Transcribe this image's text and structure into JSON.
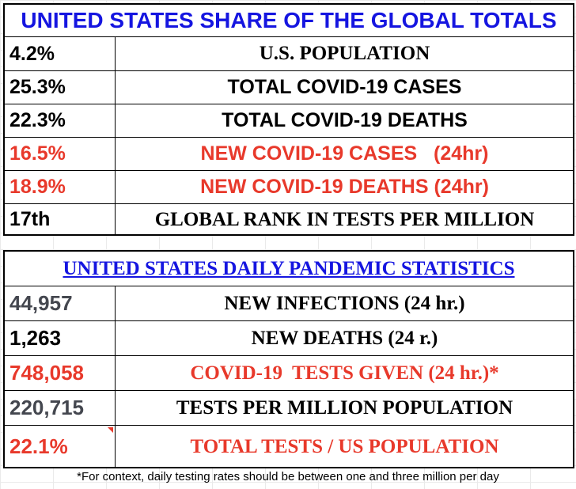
{
  "share_table": {
    "title": "UNITED STATES SHARE OF THE GLOBAL TOTALS",
    "rows": [
      {
        "value": "4.2%",
        "label": "U.S. POPULATION"
      },
      {
        "value": "25.3%",
        "label": "TOTAL COVID-19 CASES"
      },
      {
        "value": "22.3%",
        "label": "TOTAL COVID-19 DEATHS"
      },
      {
        "value": "16.5%",
        "label": "NEW COVID-19 CASES   (24hr)"
      },
      {
        "value": "18.9%",
        "label": "NEW COVID-19 DEATHS (24hr)"
      },
      {
        "value": "17th",
        "label": "GLOBAL RANK IN TESTS PER MILLION"
      }
    ]
  },
  "daily_table": {
    "title": "UNITED STATES DAILY PANDEMIC STATISTICS",
    "rows": [
      {
        "value": "44,957",
        "label": "NEW INFECTIONS (24 hr.)"
      },
      {
        "value": "1,263",
        "label": "NEW DEATHS (24 r.)"
      },
      {
        "value": "748,058",
        "label": "COVID-19  TESTS GIVEN (24 hr.)*"
      },
      {
        "value": "220,715",
        "label": "TESTS PER MILLION POPULATION"
      },
      {
        "value": "22.1%",
        "label": "TOTAL TESTS / US POPULATION"
      }
    ]
  },
  "footnote": "*For context, daily testing rates should be between one and three million per day",
  "colors": {
    "title_blue": "#1515e0",
    "highlight_red": "#e8392b",
    "value_grey": "#44474f"
  }
}
